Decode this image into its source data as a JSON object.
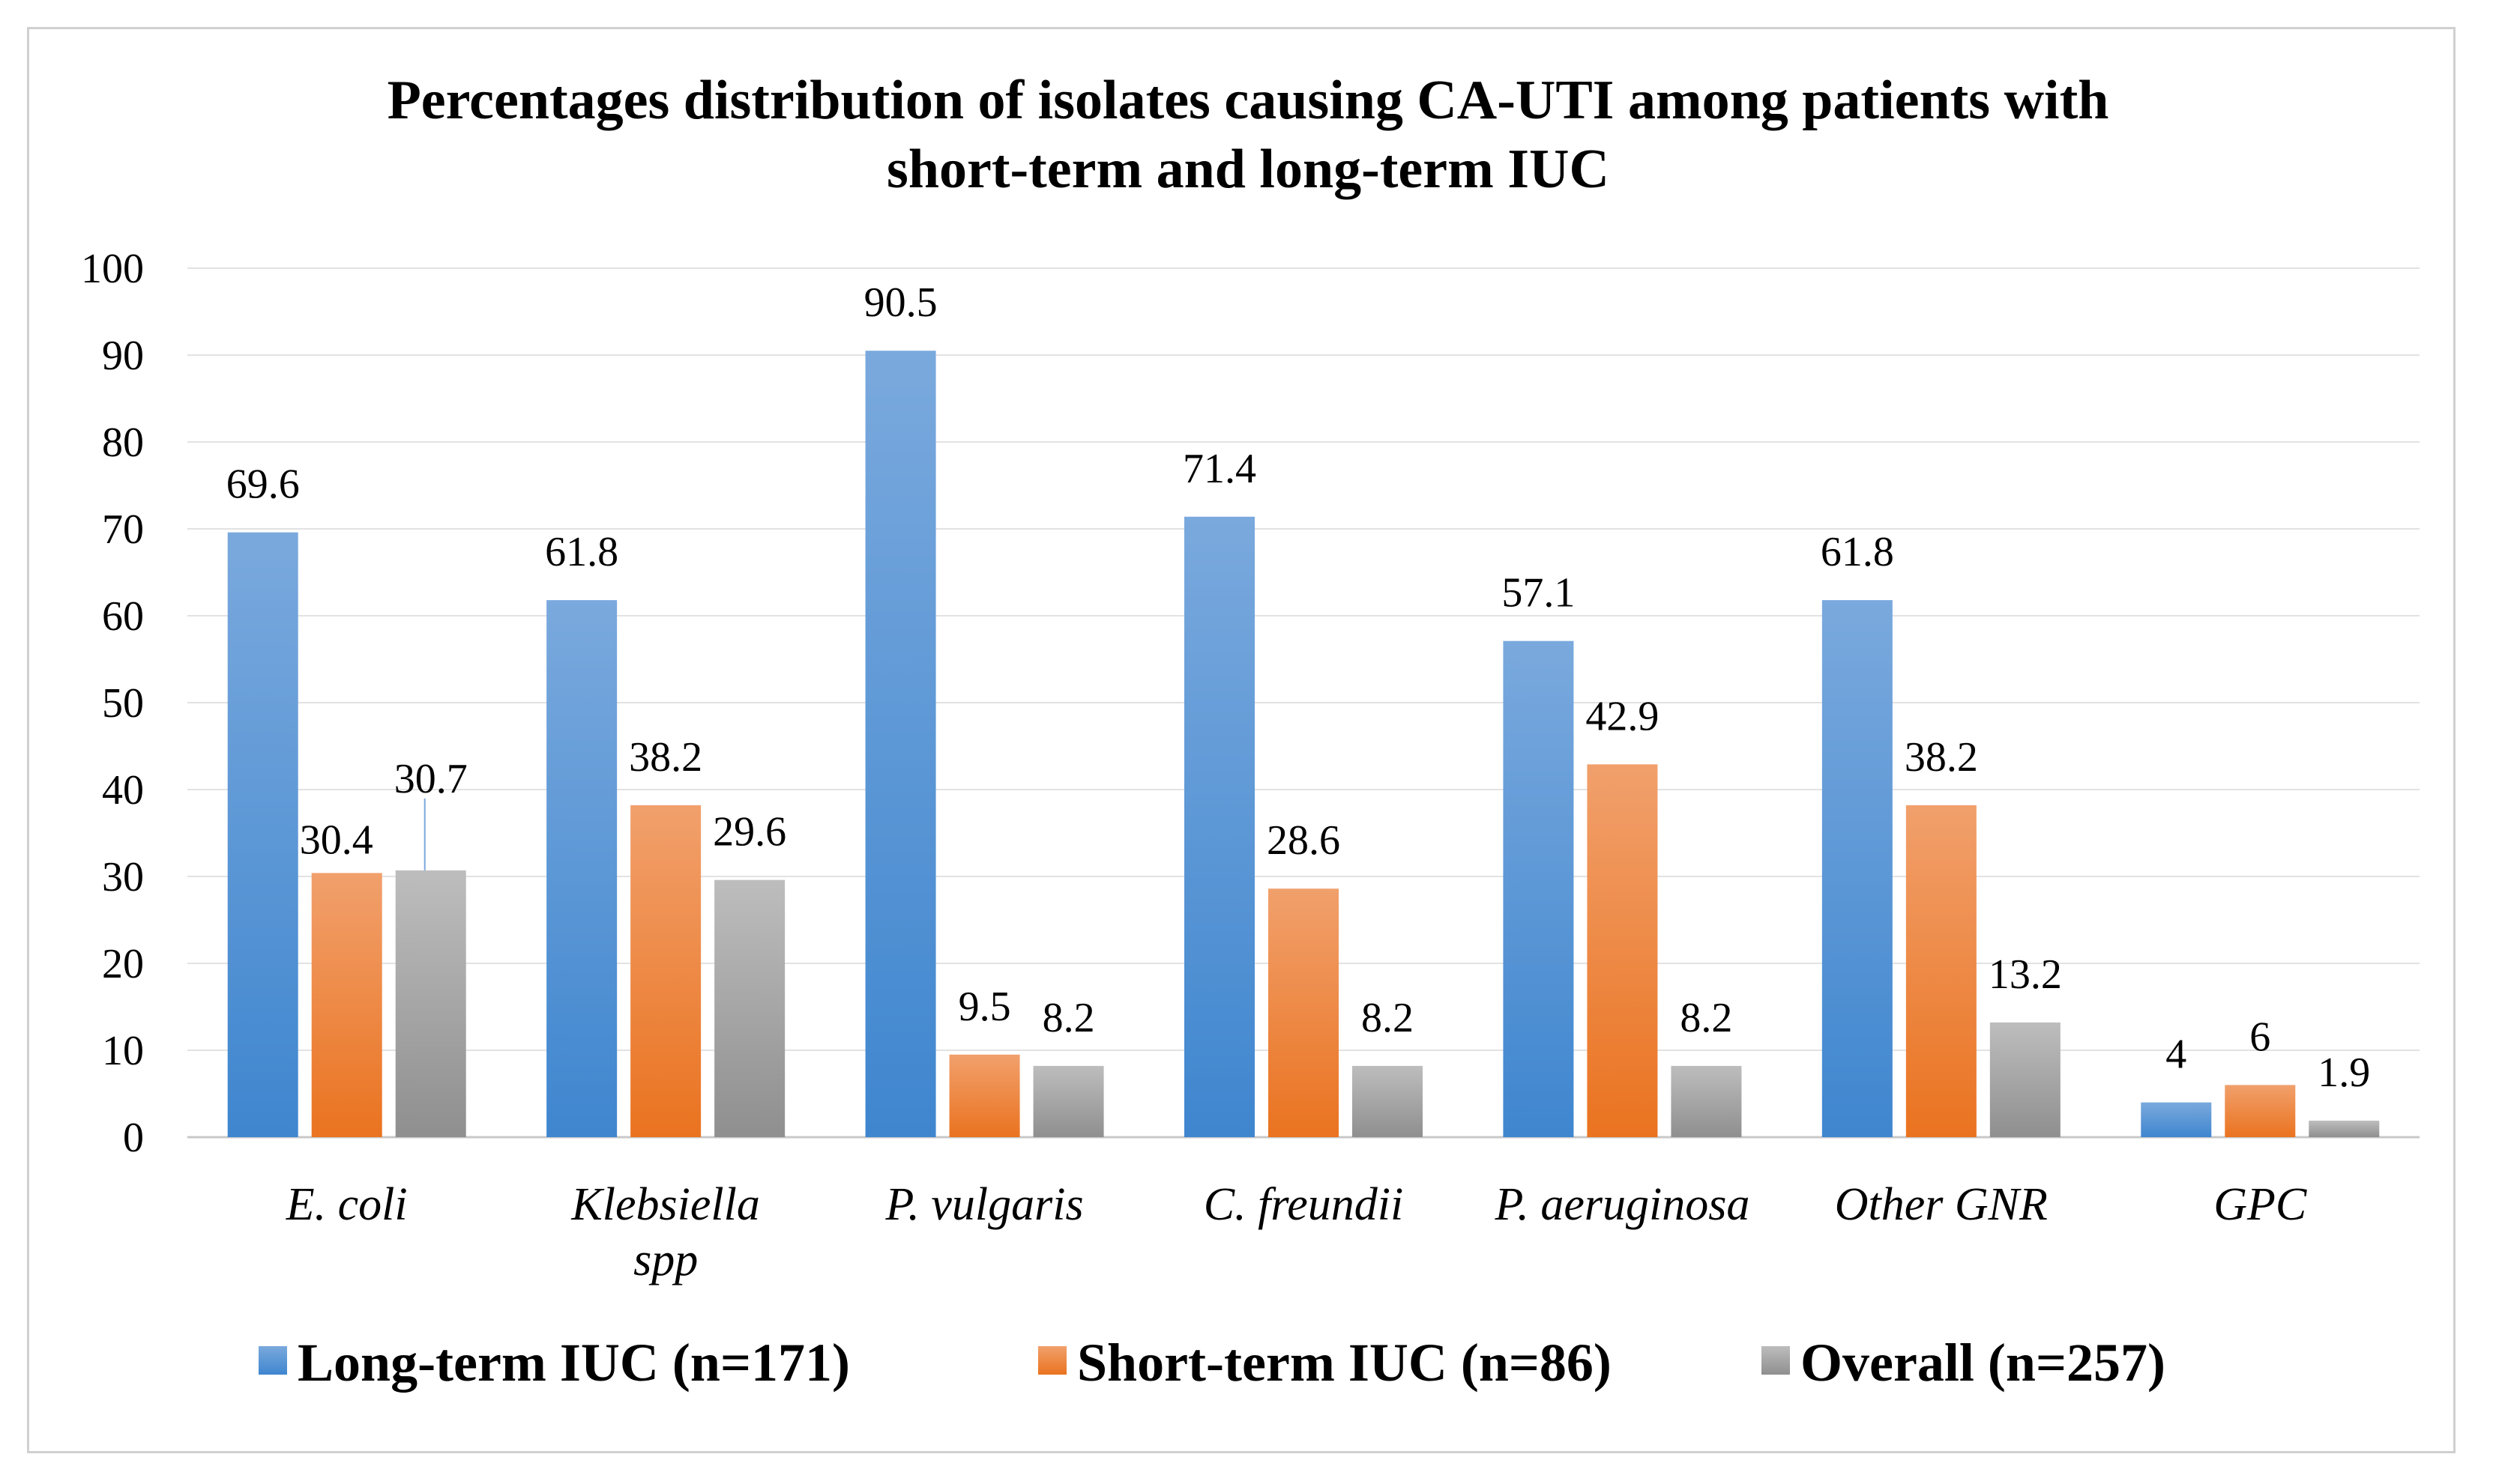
{
  "chart_data": {
    "type": "bar",
    "title_lines": [
      "Percentages distribution of isolates causing CA-UTI among patients with",
      "short-term and long-term IUC"
    ],
    "categories": [
      [
        "E. coli"
      ],
      [
        "Klebsiella",
        "spp"
      ],
      [
        "P. vulgaris"
      ],
      [
        "C. freundii"
      ],
      [
        "P. aeruginosa"
      ],
      [
        "Other GNR"
      ],
      [
        "GPC"
      ]
    ],
    "series": [
      {
        "name": "Long-term IUC (n=171)",
        "values": [
          69.6,
          61.8,
          90.5,
          71.4,
          57.1,
          61.8,
          4
        ],
        "labels": [
          "69.6",
          "61.8",
          "90.5",
          "71.4",
          "57.1",
          "61.8",
          "4"
        ],
        "color_top": "#7aa9dd",
        "color_bottom": "#3f86cf"
      },
      {
        "name": "Short-term IUC (n=86)",
        "values": [
          30.4,
          38.2,
          9.5,
          28.6,
          42.9,
          38.2,
          6
        ],
        "labels": [
          "30.4",
          "38.2",
          "9.5",
          "28.6",
          "42.9",
          "38.2",
          "6"
        ],
        "color_top": "#f1a06c",
        "color_bottom": "#ea7320"
      },
      {
        "name": "Overall (n=257)",
        "values": [
          30.7,
          29.6,
          8.2,
          8.2,
          8.2,
          13.2,
          1.9
        ],
        "labels": [
          "30.7",
          "29.6",
          "8.2",
          "8.2",
          "8.2",
          "13.2",
          "1.9"
        ],
        "color_top": "#bdbdbd",
        "color_bottom": "#8f8f8f"
      }
    ],
    "y_ticks": [
      "0",
      "10",
      "20",
      "30",
      "40",
      "50",
      "60",
      "70",
      "80",
      "90",
      "100"
    ],
    "ylim": [
      0,
      100
    ],
    "xlabel": "",
    "ylabel": "",
    "grid": true,
    "legend_position": "bottom"
  }
}
